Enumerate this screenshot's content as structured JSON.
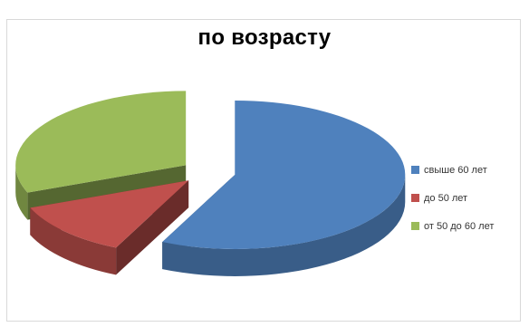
{
  "chart_data": {
    "type": "pie",
    "title": "по возрасту",
    "style": "3d-exploded",
    "legend_position": "right",
    "categories": [
      "свыше 60 лет",
      "до 50 лет",
      "от 50 до 60 лет"
    ],
    "values": [
      57,
      12,
      31
    ],
    "colors": [
      "#4F81BD",
      "#C0504D",
      "#9BBB59"
    ]
  }
}
